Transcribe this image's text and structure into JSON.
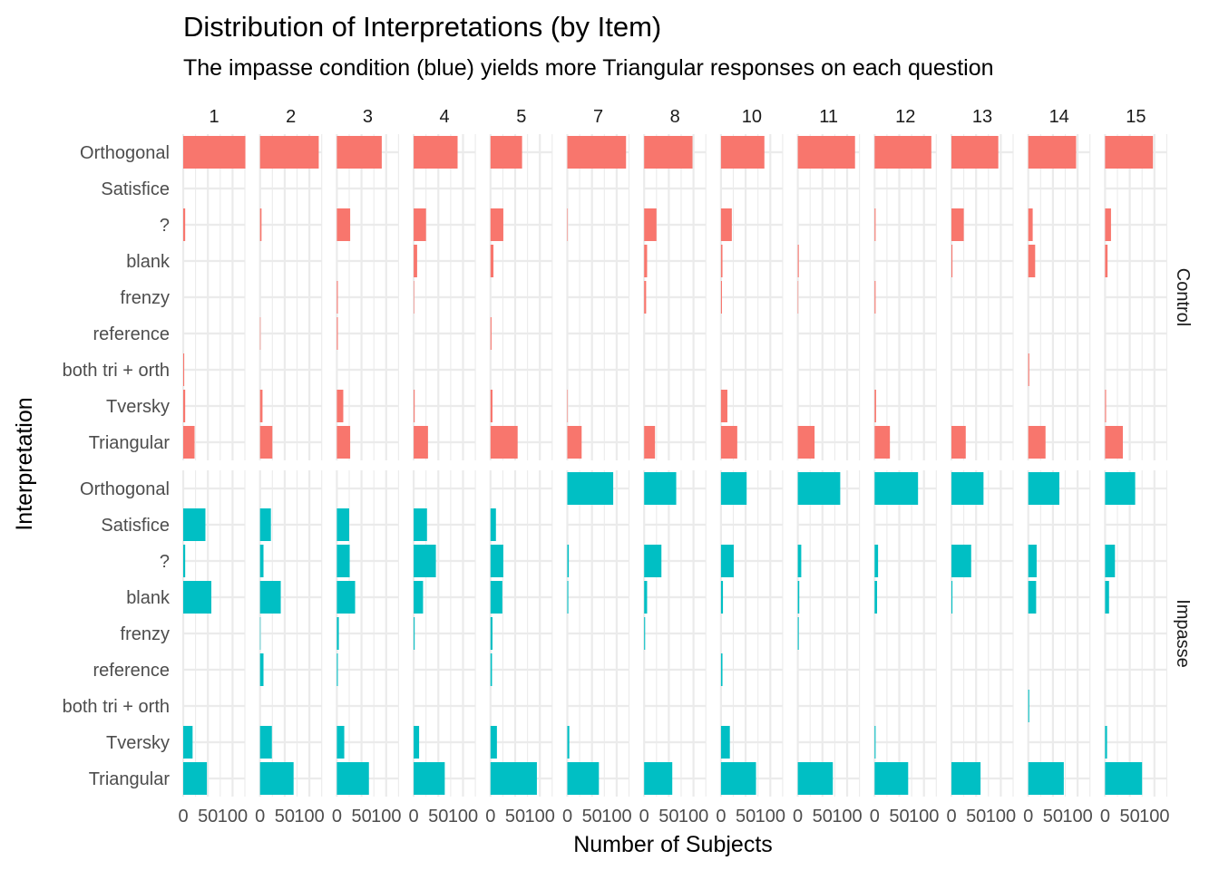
{
  "chart_data": {
    "type": "bar",
    "orientation": "horizontal",
    "faceted": true,
    "title": "Distribution of Interpretations (by Item)",
    "subtitle": "The impasse condition (blue) yields more Triangular responses on each question",
    "xlabel": "Number of Subjects",
    "ylabel": "Interpretation",
    "xlim": [
      0,
      125
    ],
    "x_ticks": [
      "0",
      "50",
      "100"
    ],
    "grid": true,
    "legend": "none",
    "items": [
      "1",
      "2",
      "3",
      "4",
      "5",
      "7",
      "8",
      "10",
      "11",
      "12",
      "13",
      "14",
      "15"
    ],
    "categories": [
      "Orthogonal",
      "Satisfice",
      "?",
      "blank",
      "frenzy",
      "reference",
      "both tri + orth",
      "Tversky",
      "Triangular"
    ],
    "series": [
      {
        "name": "Control",
        "color": "#F8766D",
        "values": [
          [
            126,
            0,
            4,
            0,
            0,
            0,
            2,
            4,
            23
          ],
          [
            119,
            0,
            3,
            0,
            0,
            1,
            0,
            5,
            25
          ],
          [
            91,
            0,
            27,
            0,
            2,
            2,
            0,
            13,
            27
          ],
          [
            89,
            0,
            25,
            7,
            1,
            0,
            0,
            2,
            29
          ],
          [
            64,
            0,
            26,
            6,
            0,
            2,
            0,
            4,
            55
          ],
          [
            119,
            0,
            1,
            0,
            0,
            0,
            0,
            1,
            29
          ],
          [
            98,
            0,
            25,
            6,
            4,
            0,
            0,
            0,
            22
          ],
          [
            88,
            0,
            22,
            3,
            2,
            0,
            0,
            13,
            33
          ],
          [
            116,
            0,
            0,
            2,
            1,
            0,
            0,
            0,
            34
          ],
          [
            115,
            0,
            2,
            0,
            2,
            0,
            0,
            3,
            31
          ],
          [
            95,
            0,
            25,
            2,
            0,
            0,
            0,
            0,
            29
          ],
          [
            97,
            0,
            9,
            14,
            0,
            0,
            2,
            0,
            35
          ],
          [
            97,
            0,
            12,
            5,
            0,
            0,
            0,
            2,
            36
          ]
        ]
      },
      {
        "name": "Impasse",
        "color": "#00BFC4",
        "values": [
          [
            0,
            45,
            4,
            57,
            0,
            0,
            0,
            19,
            48
          ],
          [
            0,
            22,
            7,
            42,
            1,
            7,
            0,
            24,
            68
          ],
          [
            0,
            25,
            26,
            37,
            4,
            2,
            0,
            15,
            65
          ],
          [
            0,
            27,
            45,
            19,
            2,
            0,
            0,
            11,
            63
          ],
          [
            0,
            11,
            26,
            24,
            4,
            3,
            0,
            13,
            94
          ],
          [
            93,
            0,
            3,
            2,
            0,
            0,
            0,
            4,
            64
          ],
          [
            65,
            0,
            35,
            6,
            2,
            0,
            0,
            0,
            57
          ],
          [
            52,
            0,
            26,
            4,
            0,
            3,
            0,
            18,
            71
          ],
          [
            86,
            0,
            7,
            3,
            2,
            0,
            0,
            0,
            71
          ],
          [
            88,
            0,
            7,
            5,
            0,
            0,
            0,
            2,
            68
          ],
          [
            65,
            0,
            40,
            2,
            0,
            0,
            0,
            0,
            59
          ],
          [
            63,
            0,
            17,
            16,
            0,
            0,
            2,
            0,
            72
          ],
          [
            61,
            0,
            20,
            8,
            0,
            0,
            0,
            4,
            75
          ]
        ]
      }
    ]
  }
}
